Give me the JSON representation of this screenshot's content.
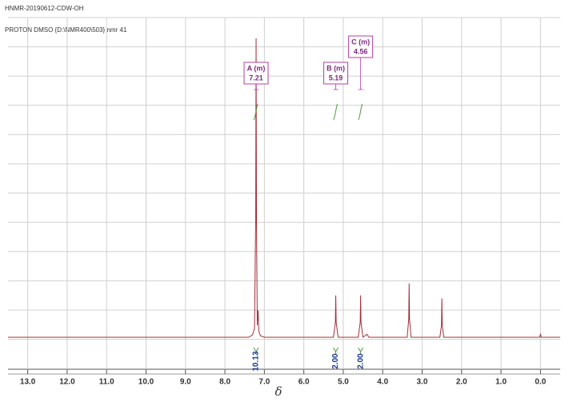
{
  "chart_data": {
    "type": "line",
    "title": "HNMR-20190612-CDW-OH",
    "subtitle": "PROTON DMSO {D:\\NMR400\\503} nmr 41",
    "x_label": "δ",
    "x": [
      13.5,
      7.4,
      7.3,
      7.25,
      7.22,
      7.21,
      7.2,
      7.18,
      7.16,
      7.14,
      7.1,
      7.0,
      5.25,
      5.2,
      5.19,
      5.18,
      5.13,
      4.62,
      4.57,
      4.56,
      4.55,
      4.5,
      4.4,
      4.35,
      3.38,
      3.34,
      3.33,
      3.32,
      3.28,
      2.55,
      2.51,
      2.5,
      2.49,
      2.45,
      0.02,
      0.0,
      -0.02,
      -0.5
    ],
    "series": [
      {
        "name": "spectrum",
        "color": "#a0303a",
        "values": [
          0,
          0,
          0.8,
          3,
          40,
          100,
          40,
          4,
          9,
          2,
          0.5,
          0,
          0,
          5,
          14,
          5,
          0,
          0,
          5,
          14,
          5,
          0,
          1,
          0,
          0,
          6,
          18,
          6,
          0,
          0,
          4,
          13,
          4,
          0,
          0,
          1,
          0,
          0
        ]
      }
    ],
    "xlim": [
      13.5,
      -0.5
    ],
    "ylim": [
      0,
      100
    ],
    "xticks": [
      {
        "value": 13,
        "label": "13.0"
      },
      {
        "value": 12,
        "label": "12.0"
      },
      {
        "value": 11,
        "label": "11.0"
      },
      {
        "value": 10,
        "label": "10.0"
      },
      {
        "value": 9,
        "label": "9.0"
      },
      {
        "value": 8,
        "label": "8.0"
      },
      {
        "value": 7,
        "label": "7.0"
      },
      {
        "value": 6,
        "label": "6.0"
      },
      {
        "value": 5,
        "label": "5.0"
      },
      {
        "value": 4,
        "label": "4.0"
      },
      {
        "value": 3,
        "label": "3.0"
      },
      {
        "value": 2,
        "label": "2.0"
      },
      {
        "value": 1,
        "label": "1.0"
      },
      {
        "value": 0,
        "label": "0.0"
      }
    ],
    "grid": true,
    "peaks": [
      {
        "label": "A (m)",
        "shift": 7.21,
        "integral": 10.13
      },
      {
        "label": "B (m)",
        "shift": 5.19,
        "integral": {
          "value": 2,
          "label": "2.00"
        }
      },
      {
        "label": "C (m)",
        "shift": 4.56,
        "integral": {
          "value": 2,
          "label": "2.00"
        }
      }
    ]
  }
}
